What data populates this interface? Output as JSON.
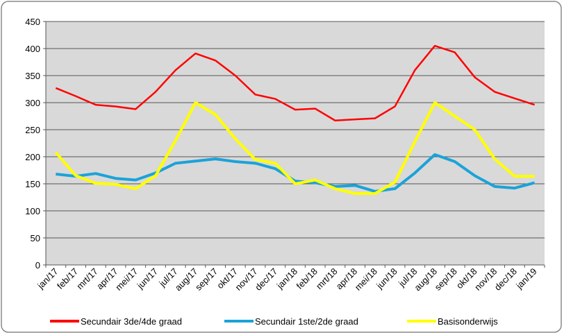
{
  "chart_data": {
    "type": "line",
    "categories": [
      "jan/17",
      "feb/17",
      "mrt/17",
      "apr/17",
      "mei/17",
      "jun/17",
      "jul/17",
      "aug/17",
      "sep/17",
      "okt/17",
      "nov/17",
      "dec/17",
      "jan/18",
      "feb/18",
      "mrt/18",
      "apr/18",
      "mei/18",
      "jun/18",
      "jul/18",
      "aug/18",
      "sep/18",
      "okt/18",
      "nov/18",
      "dec/18",
      "jan/19"
    ],
    "series": [
      {
        "name": "Secundair 3de/4de graad",
        "color": "#ff0000",
        "values": [
          327,
          312,
          296,
          293,
          288,
          320,
          360,
          391,
          378,
          350,
          315,
          307,
          287,
          289,
          267,
          269,
          271,
          293,
          360,
          405,
          393,
          347,
          320,
          308,
          296
        ]
      },
      {
        "name": "Secundair 1ste/2de graad",
        "color": "#1aa3d9",
        "values": [
          168,
          164,
          169,
          160,
          157,
          170,
          188,
          192,
          196,
          191,
          188,
          178,
          155,
          152,
          145,
          147,
          136,
          141,
          170,
          204,
          191,
          165,
          145,
          142,
          152
        ]
      },
      {
        "name": "Basisonderwijs",
        "color": "#ffff00",
        "values": [
          208,
          165,
          151,
          149,
          141,
          165,
          230,
          300,
          278,
          233,
          195,
          188,
          150,
          157,
          141,
          132,
          132,
          153,
          228,
          300,
          275,
          250,
          196,
          164,
          164
        ]
      }
    ],
    "ylim": [
      0,
      450
    ],
    "yticks": [
      0,
      50,
      100,
      150,
      200,
      250,
      300,
      350,
      400,
      450
    ],
    "grid": true,
    "legend": "bottom"
  }
}
